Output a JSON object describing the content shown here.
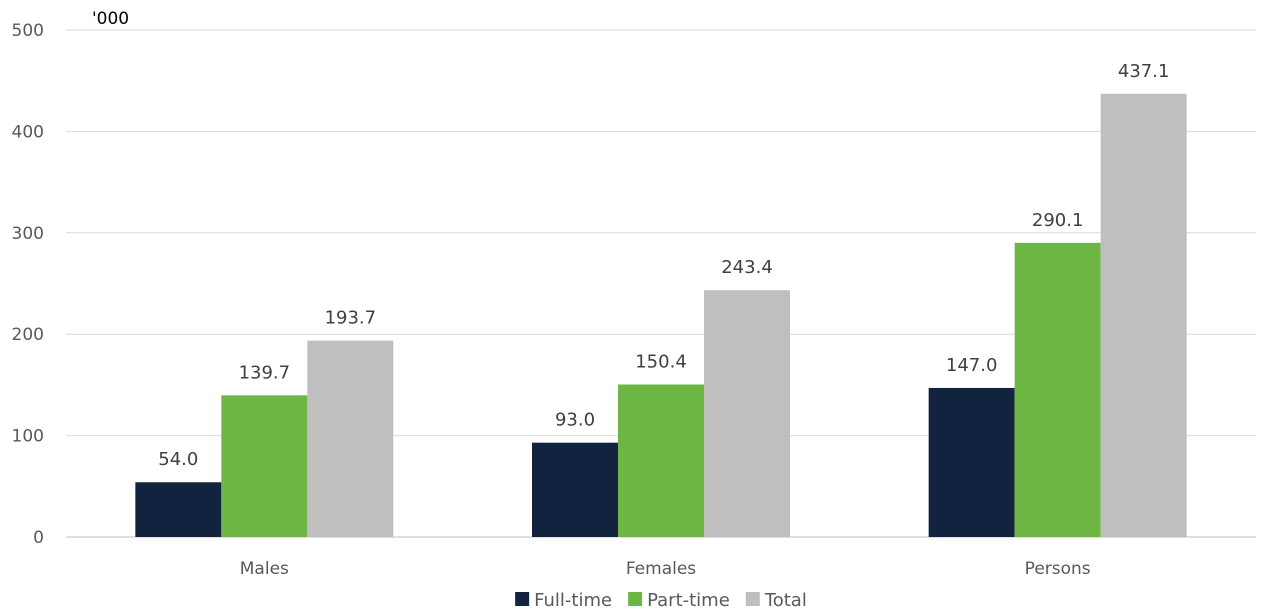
{
  "chart_data": {
    "type": "bar",
    "unit_label": "'000",
    "categories": [
      "Males",
      "Females",
      "Persons"
    ],
    "series": [
      {
        "name": "Full-time",
        "color": "#12233f",
        "values": [
          54.0,
          93.0,
          147.0
        ],
        "labels": [
          "54.0",
          "93.0",
          "147.0"
        ]
      },
      {
        "name": "Part-time",
        "color": "#6db643",
        "values": [
          139.7,
          150.4,
          290.1
        ],
        "labels": [
          "139.7",
          "150.4",
          "290.1"
        ]
      },
      {
        "name": "Total",
        "color": "#bfbfbf",
        "values": [
          193.7,
          243.4,
          437.1
        ],
        "labels": [
          "193.7",
          "243.4",
          "437.1"
        ]
      }
    ],
    "ylim": [
      0,
      500
    ],
    "yticks": [
      "0",
      "100",
      "200",
      "300",
      "400",
      "500"
    ],
    "grid": true,
    "legend_position": "bottom"
  }
}
